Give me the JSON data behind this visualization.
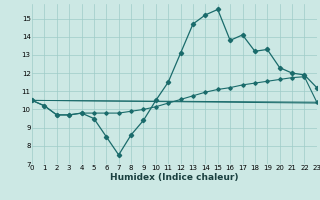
{
  "xlabel": "Humidex (Indice chaleur)",
  "background_color": "#cce8e4",
  "grid_color": "#9fccc8",
  "line_color": "#1a6b6b",
  "line1_x": [
    0,
    1,
    2,
    3,
    4,
    5,
    6,
    7,
    8,
    9,
    10,
    11,
    12,
    13,
    14,
    15,
    16,
    17,
    18,
    19,
    20,
    21,
    22,
    23
  ],
  "line1_y": [
    10.5,
    10.2,
    9.7,
    9.7,
    9.8,
    9.5,
    8.5,
    7.5,
    8.6,
    9.4,
    10.5,
    11.5,
    13.1,
    14.7,
    15.2,
    15.5,
    13.8,
    14.1,
    13.2,
    13.3,
    12.3,
    12.0,
    11.9,
    11.2
  ],
  "line2_x": [
    0,
    1,
    2,
    3,
    4,
    5,
    6,
    7,
    8,
    9,
    10,
    11,
    12,
    13,
    14,
    15,
    16,
    17,
    18,
    19,
    20,
    21,
    22,
    23
  ],
  "line2_y": [
    10.5,
    10.2,
    9.7,
    9.7,
    9.8,
    9.8,
    9.8,
    9.8,
    9.9,
    10.0,
    10.15,
    10.35,
    10.55,
    10.75,
    10.95,
    11.1,
    11.2,
    11.35,
    11.45,
    11.55,
    11.65,
    11.75,
    11.8,
    10.4
  ],
  "line3_y_start": 10.5,
  "line3_y_end": 10.4,
  "line4_y_start": 10.5,
  "line4_y_end": 10.35,
  "ylim": [
    7,
    15.8
  ],
  "xlim": [
    0,
    23
  ],
  "yticks": [
    7,
    8,
    9,
    10,
    11,
    12,
    13,
    14,
    15
  ],
  "xticks": [
    0,
    1,
    2,
    3,
    4,
    5,
    6,
    7,
    8,
    9,
    10,
    11,
    12,
    13,
    14,
    15,
    16,
    17,
    18,
    19,
    20,
    21,
    22,
    23
  ],
  "xlabel_fontsize": 6.5,
  "tick_fontsize": 5.0
}
